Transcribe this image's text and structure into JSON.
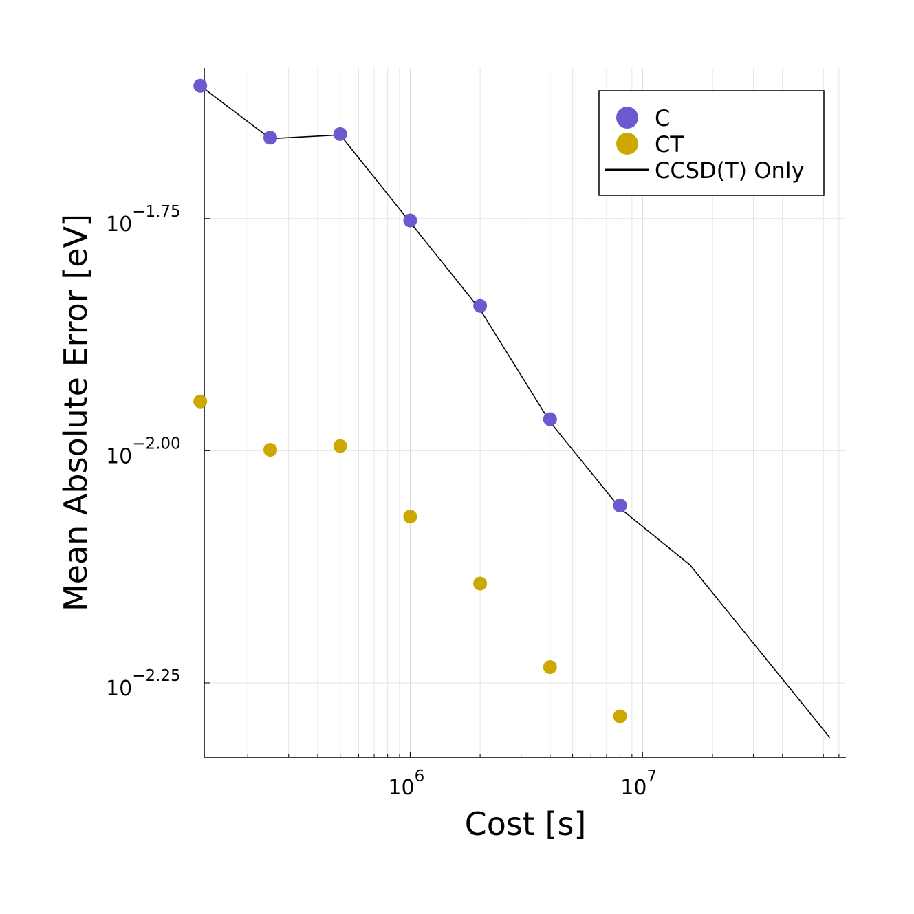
{
  "chart_data": {
    "type": "scatter",
    "xlabel": "Cost [s]",
    "ylabel": "Mean Absolute Error [eV]",
    "xscale": "log",
    "yscale": "log",
    "xlim": [
      130000,
      75000000
    ],
    "ylim_log10": [
      -2.33,
      -1.588
    ],
    "x_ticks": [
      {
        "value": 1000000,
        "base": "10",
        "exp": "6"
      },
      {
        "value": 10000000,
        "base": "10",
        "exp": "7"
      }
    ],
    "y_ticks": [
      {
        "log10": -1.75,
        "base": "10",
        "exp": "−1.75"
      },
      {
        "log10": -2.0,
        "base": "10",
        "exp": "−2.00"
      },
      {
        "log10": -2.25,
        "base": "10",
        "exp": "−2.25"
      }
    ],
    "grid": true,
    "legend_position": "top-right",
    "series": [
      {
        "name": "C",
        "kind": "scatter",
        "color": "#6a5acd",
        "x": [
          125000,
          250000,
          500000,
          1000000,
          2000000,
          4000000,
          8000000
        ],
        "y_log10": [
          -1.607,
          -1.663,
          -1.659,
          -1.752,
          -1.844,
          -1.966,
          -2.059
        ]
      },
      {
        "name": "CT",
        "kind": "scatter",
        "color": "#cca800",
        "x": [
          125000,
          250000,
          500000,
          1000000,
          2000000,
          4000000,
          8000000
        ],
        "y_log10": [
          -1.947,
          -1.999,
          -1.995,
          -2.071,
          -2.143,
          -2.233,
          -2.286
        ]
      },
      {
        "name": "CCSD(T) Only",
        "kind": "line",
        "color": "#000000",
        "x": [
          125000,
          250000,
          500000,
          1000000,
          2000000,
          4000000,
          8000000,
          16000000,
          64000000
        ],
        "y_log10": [
          -1.607,
          -1.664,
          -1.66,
          -1.754,
          -1.848,
          -1.969,
          -2.062,
          -2.123,
          -2.309
        ]
      }
    ]
  }
}
